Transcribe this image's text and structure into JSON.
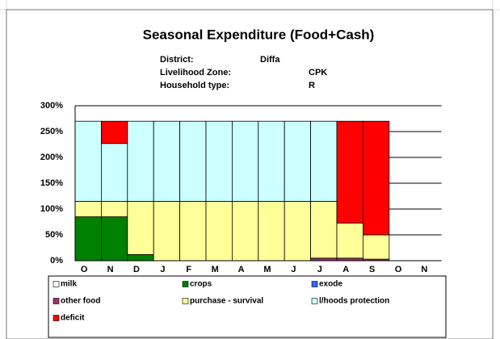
{
  "chart_data": {
    "type": "bar",
    "stacked": true,
    "title": "Seasonal Expenditure (Food+Cash)",
    "info": [
      {
        "label": "District:",
        "value": "Diffa"
      },
      {
        "label": "Livelihood Zone:",
        "value": "CPK"
      },
      {
        "label": "Household type:",
        "value": "R"
      }
    ],
    "categories": [
      "O",
      "N",
      "D",
      "J",
      "F",
      "M",
      "A",
      "M",
      "J",
      "J",
      "A",
      "S",
      "O",
      "N"
    ],
    "series": [
      {
        "name": "milk",
        "color": "#ffffff",
        "values": [
          0,
          0,
          0,
          0,
          0,
          0,
          0,
          0,
          0,
          0,
          0,
          0,
          0,
          0
        ]
      },
      {
        "name": "crops",
        "color": "#008000",
        "values": [
          85,
          85,
          12,
          0,
          0,
          0,
          0,
          0,
          0,
          0,
          0,
          0,
          0,
          0
        ]
      },
      {
        "name": "exode",
        "color": "#3366ff",
        "values": [
          0,
          0,
          0,
          0,
          0,
          0,
          0,
          0,
          0,
          0,
          0,
          0,
          0,
          0
        ]
      },
      {
        "name": "other food",
        "color": "#993366",
        "values": [
          0,
          0,
          0,
          0,
          0,
          0,
          0,
          0,
          0,
          5,
          5,
          3,
          0,
          0
        ]
      },
      {
        "name": "purchase - survival",
        "color": "#ffff99",
        "values": [
          30,
          30,
          103,
          115,
          115,
          115,
          115,
          115,
          115,
          110,
          68,
          47,
          0,
          0
        ]
      },
      {
        "name": "l/hoods protection",
        "color": "#ccffff",
        "values": [
          155,
          112,
          155,
          155,
          155,
          155,
          155,
          155,
          155,
          155,
          0,
          0,
          0,
          0
        ]
      },
      {
        "name": "deficit",
        "color": "#ff0000",
        "values": [
          0,
          43,
          0,
          0,
          0,
          0,
          0,
          0,
          0,
          0,
          197,
          220,
          0,
          0
        ]
      }
    ],
    "ylim": [
      0,
      300
    ],
    "yticks": [
      {
        "value": 0,
        "label": "0%"
      },
      {
        "value": 50,
        "label": "50%"
      },
      {
        "value": 100,
        "label": "100%"
      },
      {
        "value": 150,
        "label": "150%"
      },
      {
        "value": 200,
        "label": "200%"
      },
      {
        "value": 250,
        "label": "250%"
      },
      {
        "value": 300,
        "label": "300%"
      }
    ],
    "grid": true
  }
}
